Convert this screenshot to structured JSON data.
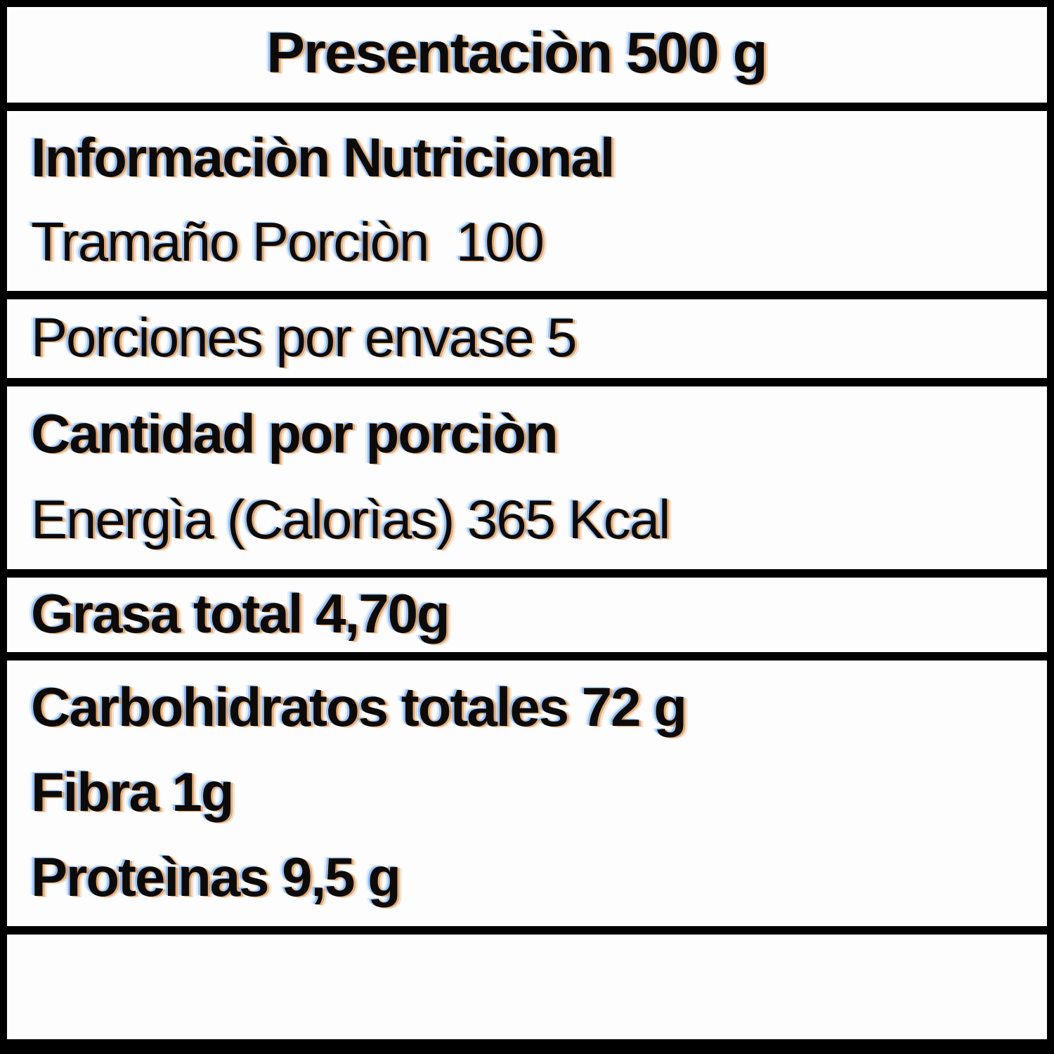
{
  "label": {
    "header": "Presentaciòn 500 g",
    "rows": [
      {
        "lines": [
          "Informaciòn Nutricional",
          "Tramaño Porciòn  100"
        ]
      },
      {
        "lines": [
          "Porciones por envase 5"
        ]
      },
      {
        "lines": [
          "Cantidad por porciòn",
          "Energìa (Calorìas) 365 Kcal"
        ]
      },
      {
        "lines": [
          "Grasa total 4,70g"
        ]
      },
      {
        "lines": [
          "Carbohidratos totales 72 g",
          "Fibra 1g",
          "Proteìnas 9,5 g"
        ]
      },
      {
        "lines": []
      }
    ],
    "colors": {
      "border": "#000000",
      "background": "#fdfdfd",
      "text": "#0d0b09",
      "fringe_warm": "#d58028",
      "fringe_cool": "#69a5fa"
    }
  }
}
